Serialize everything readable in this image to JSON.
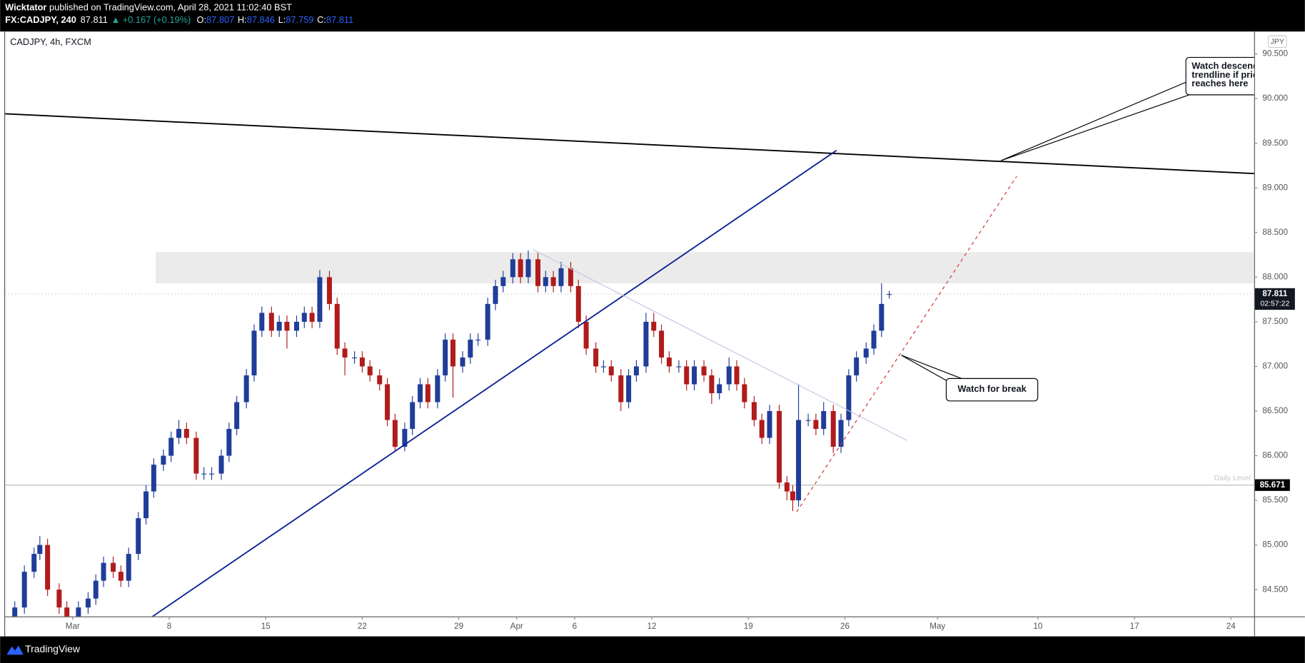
{
  "header": {
    "author": "Wicktator",
    "published": " published on TradingView.com, April 28, 2021 11:02:40 BST",
    "symbol": "FX:CADJPY, 240",
    "last": 87.811,
    "change": "▲ +0.167 (+0.19%)",
    "ohlc": [
      {
        "label": "O:",
        "value": 87.807
      },
      {
        "label": "H:",
        "value": 87.846
      },
      {
        "label": "L:",
        "value": 87.759
      },
      {
        "label": "C:",
        "value": 87.811
      }
    ]
  },
  "footer": {
    "brand": "TradingView"
  },
  "chart_data": {
    "type": "candlestick",
    "title": "CADJPY, 4h, FXCM",
    "currency": "JPY",
    "up_color": "#1f3d99",
    "down_color": "#b01b1b",
    "xlim": [
      -3.5,
      61.2
    ],
    "ylim": [
      84.2,
      90.75
    ],
    "xticks": [
      {
        "value": 0,
        "label": "Mar"
      },
      {
        "value": 5,
        "label": "8"
      },
      {
        "value": 10,
        "label": "15"
      },
      {
        "value": 15,
        "label": "22"
      },
      {
        "value": 20,
        "label": "29"
      },
      {
        "value": 23,
        "label": "Apr"
      },
      {
        "value": 26,
        "label": "6"
      },
      {
        "value": 30,
        "label": "12"
      },
      {
        "value": 35,
        "label": "19"
      },
      {
        "value": 40,
        "label": "26"
      },
      {
        "value": 44.8,
        "label": "May"
      },
      {
        "value": 50,
        "label": "10"
      },
      {
        "value": 55,
        "label": "17"
      },
      {
        "value": 60,
        "label": "24"
      }
    ],
    "yticks": [
      {
        "value": 84.5,
        "label": "84.500"
      },
      {
        "value": 85,
        "label": "85.000"
      },
      {
        "value": 85.5,
        "label": "85.500"
      },
      {
        "value": 86,
        "label": "86.000"
      },
      {
        "value": 86.5,
        "label": "86.500"
      },
      {
        "value": 87,
        "label": "87.000"
      },
      {
        "value": 87.5,
        "label": "87.500"
      },
      {
        "value": 88,
        "label": "88.000"
      },
      {
        "value": 88.5,
        "label": "88.500"
      },
      {
        "value": 89,
        "label": "89.000"
      },
      {
        "value": 89.5,
        "label": "89.500"
      },
      {
        "value": 90,
        "label": "90.000"
      },
      {
        "value": 90.5,
        "label": "90.500"
      }
    ],
    "grid": false,
    "candles": {
      "x": [
        -3,
        -2.5,
        -2,
        -1.7,
        -1.3,
        -0.7,
        -0.3,
        0.3,
        0.8,
        1.2,
        1.6,
        2.1,
        2.5,
        2.9,
        3.4,
        3.8,
        4.2,
        4.7,
        5.1,
        5.5,
        5.9,
        6.4,
        6.8,
        7.2,
        7.7,
        8.1,
        8.5,
        9,
        9.4,
        9.8,
        10.3,
        10.7,
        11.1,
        11.6,
        12,
        12.4,
        12.8,
        13.3,
        13.7,
        14.1,
        14.6,
        15,
        15.4,
        15.9,
        16.3,
        16.7,
        17.2,
        17.6,
        18,
        18.4,
        18.9,
        19.3,
        19.7,
        20.2,
        20.6,
        21,
        21.5,
        21.9,
        22.3,
        22.8,
        23.2,
        23.6,
        24.1,
        24.5,
        24.9,
        25.3,
        25.8,
        26.2,
        26.6,
        27.1,
        27.5,
        27.9,
        28.4,
        28.8,
        29.2,
        29.7,
        30.1,
        30.5,
        30.9,
        31.4,
        31.8,
        32.2,
        32.7,
        33.1,
        33.5,
        34,
        34.4,
        34.8,
        35.3,
        35.7,
        36.1,
        36.6,
        37,
        37.3,
        37.6,
        38.1,
        38.5,
        38.9,
        39.4,
        39.8,
        40.2,
        40.6,
        41.1,
        41.5,
        41.9,
        42.3
      ],
      "open": [
        84.2,
        84.3,
        84.7,
        84.9,
        85.0,
        84.5,
        84.3,
        84.2,
        84.3,
        84.4,
        84.6,
        84.8,
        84.7,
        84.6,
        84.9,
        85.3,
        85.6,
        85.9,
        86.0,
        86.2,
        86.3,
        86.2,
        85.8,
        85.8,
        85.8,
        86.0,
        86.3,
        86.6,
        86.9,
        87.4,
        87.6,
        87.4,
        87.5,
        87.4,
        87.5,
        87.6,
        87.5,
        88.0,
        87.7,
        87.2,
        87.1,
        87.1,
        87.0,
        86.9,
        86.8,
        86.4,
        86.1,
        86.3,
        86.6,
        86.8,
        86.6,
        86.9,
        87.3,
        87.0,
        87.1,
        87.3,
        87.3,
        87.7,
        87.9,
        88.0,
        88.2,
        88.0,
        88.2,
        87.9,
        88.0,
        87.9,
        88.1,
        87.9,
        87.5,
        87.2,
        87.0,
        87.0,
        86.9,
        86.6,
        86.9,
        87.0,
        87.5,
        87.4,
        87.1,
        87.0,
        87.0,
        86.8,
        87.0,
        86.9,
        86.7,
        86.8,
        87.0,
        86.8,
        86.6,
        86.4,
        86.2,
        86.5,
        85.7,
        85.6,
        85.5,
        86.4,
        86.4,
        86.3,
        86.5,
        86.1,
        86.4,
        86.9,
        87.1,
        87.2,
        87.4,
        87.807
      ],
      "high": [
        84.37,
        84.77,
        84.97,
        85.1,
        85.07,
        84.57,
        84.37,
        84.37,
        84.47,
        84.67,
        84.87,
        84.87,
        84.77,
        84.97,
        85.37,
        85.67,
        85.97,
        86.07,
        86.27,
        86.4,
        86.37,
        86.27,
        85.87,
        85.87,
        86.07,
        86.37,
        86.67,
        86.97,
        87.47,
        87.67,
        87.67,
        87.57,
        87.57,
        87.57,
        87.67,
        87.67,
        88.08,
        88.07,
        87.77,
        87.27,
        87.17,
        87.17,
        87.07,
        86.97,
        86.87,
        86.47,
        86.37,
        86.67,
        86.87,
        86.87,
        86.97,
        87.37,
        87.37,
        87.17,
        87.37,
        87.37,
        87.77,
        87.97,
        88.07,
        88.27,
        88.27,
        88.3,
        88.27,
        88.07,
        88.07,
        88.17,
        88.17,
        87.97,
        87.57,
        87.27,
        87.07,
        87.07,
        86.97,
        86.97,
        87.07,
        87.6,
        87.6,
        87.47,
        87.17,
        87.07,
        87.07,
        87.07,
        87.07,
        86.97,
        86.87,
        87.1,
        87.07,
        86.87,
        86.67,
        86.47,
        86.57,
        86.57,
        85.77,
        85.67,
        86.8,
        86.47,
        86.47,
        86.6,
        86.57,
        86.47,
        86.97,
        87.17,
        87.27,
        87.47,
        87.93,
        87.846
      ],
      "low": [
        84.13,
        84.23,
        84.63,
        84.83,
        84.43,
        84.23,
        84.13,
        84.13,
        84.23,
        84.33,
        84.53,
        84.63,
        84.53,
        84.53,
        84.83,
        85.23,
        85.53,
        85.83,
        85.93,
        86.13,
        86.13,
        85.73,
        85.73,
        85.73,
        85.73,
        85.93,
        86.23,
        86.53,
        86.83,
        87.33,
        87.33,
        87.33,
        87.2,
        87.33,
        87.43,
        87.43,
        87.43,
        87.63,
        87.13,
        86.9,
        87.03,
        86.93,
        86.83,
        86.73,
        86.33,
        86.05,
        86.05,
        86.23,
        86.53,
        86.53,
        86.53,
        86.83,
        86.65,
        86.93,
        87.03,
        87.23,
        87.23,
        87.63,
        87.83,
        87.93,
        87.93,
        87.93,
        87.83,
        87.83,
        87.83,
        87.83,
        87.83,
        87.43,
        87.13,
        86.93,
        86.93,
        86.83,
        86.5,
        86.53,
        86.83,
        86.93,
        87.33,
        87.03,
        86.93,
        86.93,
        86.73,
        86.73,
        86.83,
        86.58,
        86.63,
        86.73,
        86.73,
        86.53,
        86.33,
        86.13,
        86.13,
        85.63,
        85.5,
        85.38,
        85.43,
        86.33,
        86.23,
        86.23,
        86.03,
        86.03,
        86.33,
        86.83,
        87.03,
        87.13,
        87.33,
        87.759
      ],
      "close": [
        84.3,
        84.7,
        84.9,
        85.0,
        84.5,
        84.3,
        84.2,
        84.3,
        84.4,
        84.6,
        84.8,
        84.7,
        84.6,
        84.9,
        85.3,
        85.6,
        85.9,
        86.0,
        86.2,
        86.3,
        86.2,
        85.8,
        85.8,
        85.8,
        86.0,
        86.3,
        86.6,
        86.9,
        87.4,
        87.6,
        87.4,
        87.5,
        87.4,
        87.5,
        87.6,
        87.5,
        88.0,
        87.7,
        87.2,
        87.1,
        87.1,
        87.0,
        86.9,
        86.8,
        86.4,
        86.1,
        86.3,
        86.6,
        86.8,
        86.6,
        86.9,
        87.3,
        87.0,
        87.1,
        87.3,
        87.3,
        87.7,
        87.9,
        88.0,
        88.2,
        88.0,
        88.2,
        87.9,
        88.0,
        87.9,
        88.1,
        87.9,
        87.5,
        87.2,
        87.0,
        87.0,
        86.9,
        86.6,
        86.9,
        87.0,
        87.5,
        87.4,
        87.1,
        87.0,
        87.0,
        86.8,
        87.0,
        86.9,
        86.7,
        86.8,
        87.0,
        86.8,
        86.6,
        86.4,
        86.2,
        86.5,
        85.7,
        85.6,
        85.5,
        86.4,
        86.4,
        86.3,
        86.5,
        86.1,
        86.4,
        86.9,
        87.1,
        87.2,
        87.4,
        87.7,
        87.811
      ]
    },
    "zones": [
      {
        "x": [
          4.3,
          61.2
        ],
        "y": [
          87.93,
          88.28
        ],
        "color": "#ebebeb"
      }
    ],
    "trendlines": [
      {
        "x": [
          -3.5,
          61.2
        ],
        "y": [
          89.83,
          89.16
        ],
        "color": "#000000",
        "width": 1.6,
        "dash": false
      },
      {
        "x": [
          4.14,
          39.57
        ],
        "y": [
          84.2,
          89.42
        ],
        "color": "#0d2196",
        "width": 1.6,
        "dash": false
      },
      {
        "x": [
          37.5,
          48.9
        ],
        "y": [
          85.37,
          89.13
        ],
        "color": "#d32f2f",
        "width": 1,
        "dash": true
      },
      {
        "x": [
          23.84,
          43.23
        ],
        "y": [
          88.31,
          86.17
        ],
        "color": "#c5c8e0",
        "width": 1,
        "dash": false
      }
    ],
    "levels": [
      {
        "value": 85.671,
        "label": "Daily Level"
      }
    ],
    "last_price": {
      "value": 87.811,
      "countdown": "02:57:22"
    },
    "annotations": [
      {
        "lines": [
          "Watch descending",
          "trendline if price",
          "reaches here"
        ]
      },
      {
        "lines": [
          "Watch for break"
        ]
      }
    ]
  }
}
